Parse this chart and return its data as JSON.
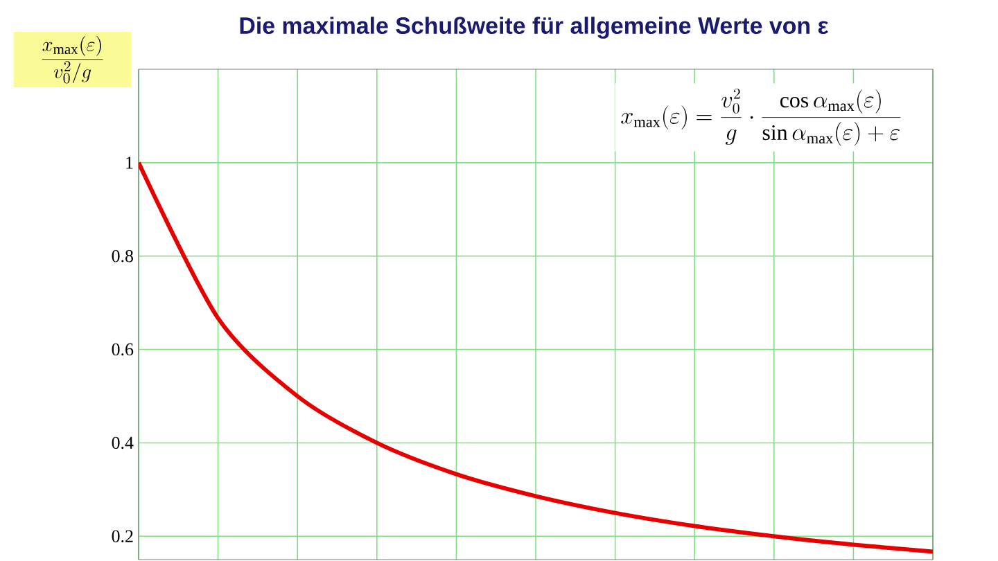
{
  "chart_data": {
    "type": "line",
    "title": "Die maximale Schußweite für allgemeine Werte von ε",
    "ylabel": "\\frac{x_{\\max}(\\varepsilon)}{v_0^2/g}",
    "annotations": [
      "x_{\\max}(\\varepsilon)=\\frac{v_0^2}{g}\\cdot\\frac{\\cos\\alpha_{\\max}(\\varepsilon)}{\\sin\\alpha_{\\max}(\\varepsilon)+\\varepsilon}"
    ],
    "categories": [
      null,
      null,
      null,
      null,
      null,
      null,
      null,
      null,
      null,
      null,
      null
    ],
    "series": [
      {
        "color": "#e60000",
        "values": [
          1,
          0.667,
          0.5,
          0.4,
          0.333,
          0.286,
          0.25,
          0.222,
          0.2,
          0.182,
          0.167
        ]
      }
    ],
    "ylim": [
      0.15,
      1.2
    ],
    "yticks": [
      0.2,
      0.4,
      0.6,
      0.8,
      1
    ],
    "grid": true,
    "tick_labels": "y",
    "marker": "none",
    "line_style": "solid"
  }
}
